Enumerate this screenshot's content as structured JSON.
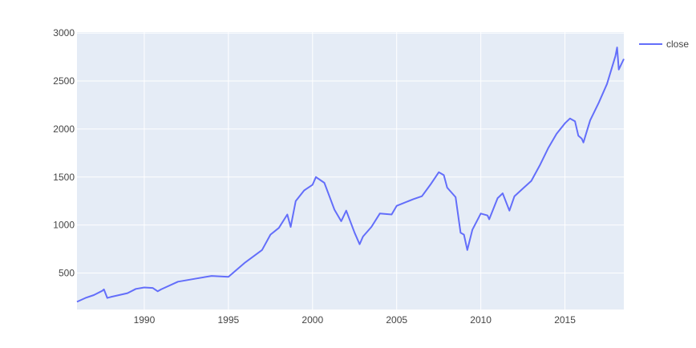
{
  "chart_data": {
    "type": "line",
    "title": "",
    "xlabel": "",
    "ylabel": "",
    "xlim": [
      1986.0,
      2018.5
    ],
    "ylim": [
      120,
      3010
    ],
    "x_ticks": [
      1990,
      1995,
      2000,
      2005,
      2010,
      2015
    ],
    "y_ticks": [
      500,
      1000,
      1500,
      2000,
      2500,
      3000
    ],
    "grid": true,
    "legend": "top-right",
    "colors": {
      "plot_bg": "#E5ECF6",
      "grid": "#FFFFFF",
      "series": "#636EFA"
    },
    "series": [
      {
        "name": "close",
        "x": [
          1986.0,
          1986.5,
          1987.0,
          1987.5,
          1987.6,
          1987.8,
          1988.0,
          1989.0,
          1989.5,
          1990.0,
          1990.5,
          1990.8,
          1991.0,
          1992.0,
          1993.0,
          1994.0,
          1995.0,
          1996.0,
          1997.0,
          1997.5,
          1998.0,
          1998.5,
          1998.7,
          1999.0,
          1999.5,
          2000.0,
          2000.2,
          2000.7,
          2001.0,
          2001.3,
          2001.7,
          2002.0,
          2002.5,
          2002.8,
          2003.0,
          2003.5,
          2004.0,
          2004.7,
          2005.0,
          2006.0,
          2006.5,
          2007.0,
          2007.5,
          2007.8,
          2008.0,
          2008.5,
          2008.8,
          2009.0,
          2009.2,
          2009.5,
          2010.0,
          2010.4,
          2010.5,
          2011.0,
          2011.3,
          2011.7,
          2012.0,
          2012.5,
          2013.0,
          2013.5,
          2014.0,
          2014.5,
          2015.0,
          2015.3,
          2015.6,
          2015.8,
          2016.0,
          2016.1,
          2016.5,
          2017.0,
          2017.5,
          2018.0,
          2018.1,
          2018.2,
          2018.5
        ],
        "values": [
          200,
          240,
          270,
          315,
          330,
          240,
          250,
          290,
          335,
          350,
          345,
          310,
          330,
          410,
          440,
          470,
          460,
          610,
          740,
          900,
          970,
          1110,
          980,
          1250,
          1360,
          1420,
          1500,
          1440,
          1300,
          1160,
          1040,
          1150,
          920,
          800,
          880,
          980,
          1120,
          1110,
          1200,
          1270,
          1300,
          1420,
          1550,
          1520,
          1390,
          1290,
          920,
          900,
          740,
          950,
          1120,
          1100,
          1060,
          1280,
          1330,
          1150,
          1300,
          1380,
          1460,
          1620,
          1800,
          1950,
          2060,
          2110,
          2080,
          1930,
          1900,
          1860,
          2090,
          2270,
          2470,
          2760,
          2850,
          2620,
          2730
        ]
      }
    ]
  }
}
